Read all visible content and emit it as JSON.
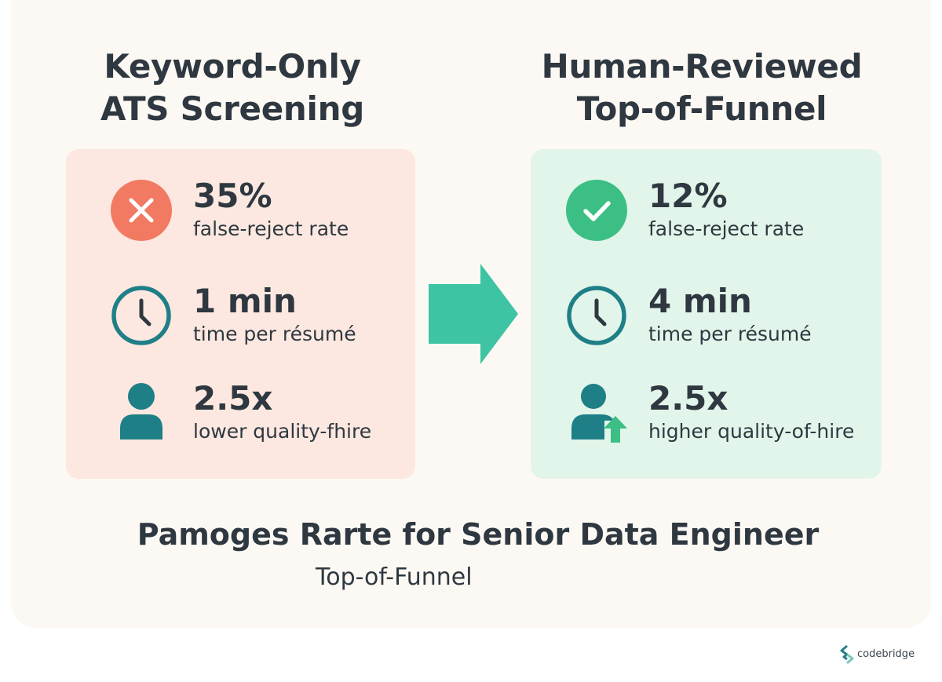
{
  "left": {
    "title_lines": [
      "Keyword-Only",
      "ATS Screening"
    ],
    "metrics": [
      {
        "icon": "x-circle-icon",
        "value": "35%",
        "label": "false-reject rate"
      },
      {
        "icon": "clock-icon",
        "value": "1 min",
        "label": "time per résumé"
      },
      {
        "icon": "person-icon",
        "value": "2.5x",
        "label": "lower quality-fhire"
      }
    ]
  },
  "right": {
    "title_lines": [
      "Human-Reviewed",
      "Top-of-Funnel"
    ],
    "metrics": [
      {
        "icon": "check-circle-icon",
        "value": "12%",
        "label": "false-reject rate"
      },
      {
        "icon": "clock-icon",
        "value": "4 min",
        "label": "time per résumé"
      },
      {
        "icon": "person-up-arrow-icon",
        "value": "2.5x",
        "label": "higher quality-of-hire"
      }
    ]
  },
  "footer": {
    "title": "Pamoges Rarte for Senior Data Engineer",
    "subtitle": "Top-of-Funnel"
  },
  "brand": {
    "name": "codebridge",
    "icon": "codebridge-logo-icon"
  },
  "colors": {
    "background": "#fcf9f4",
    "left_panel": "#fce8e0",
    "right_panel": "#e2f5ea",
    "reject_red": "#f27a62",
    "accept_green": "#3cbf84",
    "teal": "#1f7f86",
    "arrow_teal": "#3ec4a2",
    "text": "#2f3840"
  }
}
